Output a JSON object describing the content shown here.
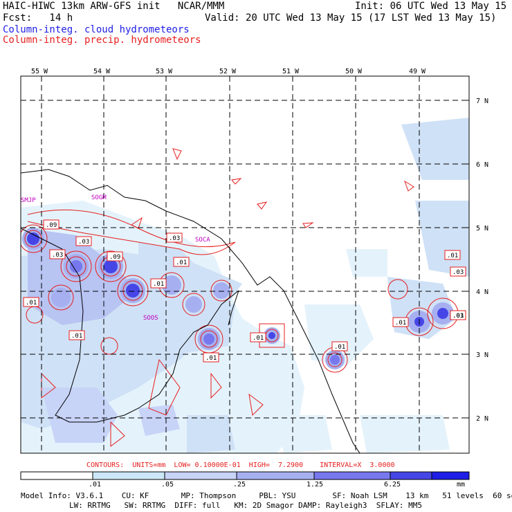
{
  "header": {
    "title": "HAIC-HIWC 13km ARW-GFS init   NCAR/MMM",
    "init": "Init: 06 UTC Wed 13 May 15",
    "fcst": "Fcst:   14 h",
    "valid": "Valid: 20 UTC Wed 13 May 15 (17 LST Wed 13 May 15)",
    "field1": "Column-integ. cloud hydrometeors",
    "field2": "Column-integ. precip. hydrometeors"
  },
  "lon_labels": [
    "55 W",
    "54 W",
    "53 W",
    "52 W",
    "51 W",
    "50 W",
    "49 W"
  ],
  "lat_labels": [
    "7 N",
    "6 N",
    "5 N",
    "4 N",
    "3 N",
    "2 N"
  ],
  "stations": [
    "SMJP",
    "SOCA",
    "SOGM",
    "SOOS"
  ],
  "contour_labels": [
    ".09",
    ".03",
    ".03",
    ".09",
    ".03",
    ".01",
    ".01",
    ".01",
    ".01",
    ".01",
    ".01",
    ".01",
    ".01",
    ".01",
    ".03",
    ".01",
    ".03"
  ],
  "contours_line": "CONTOURS:  UNITS=mm  LOW= 0.10000E-01  HIGH=  7.2900    INTERVAL=X  3.0000",
  "colorbar": {
    "labels": [
      ".01",
      ".05",
      ".25",
      "1.25",
      "6.25"
    ],
    "units": "mm",
    "colors": [
      "#ffffff",
      "#cce8f8",
      "#c7d3f7",
      "#a6b0f0",
      "#7878ee",
      "#4646e6",
      "#1e1ee6"
    ]
  },
  "footer": {
    "line1": "Model Info: V3.6.1    CU: KF       MP: Thompson     PBL: YSU        SF: Noah LSM    13 km   51 levels  60 sec",
    "line2": "LW: RRTMG   SW: RRTMG  DIFF: full   KM: 2D Smagor DAMP: Rayleigh3  SFLAY: MM5"
  },
  "colors": {
    "cloud": "#1e1ee6",
    "precip": "#e61e1e",
    "coast": "#000000"
  }
}
